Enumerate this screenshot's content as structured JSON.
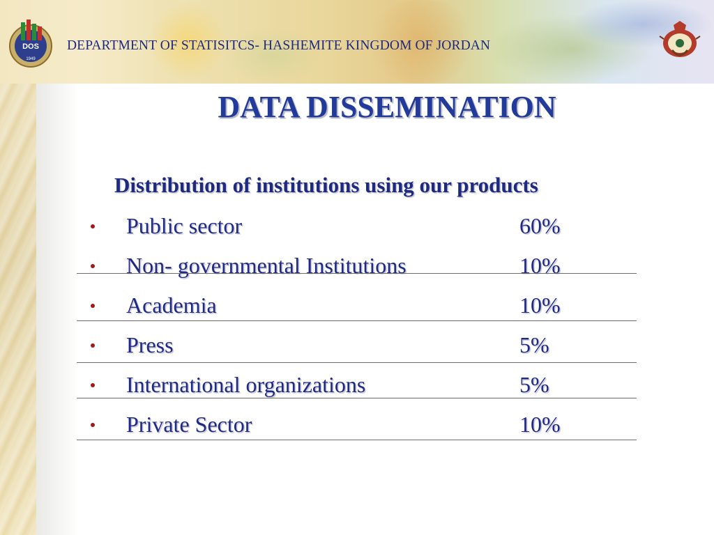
{
  "header": {
    "department": "DEPARTMENT OF STATISITCS- HASHEMITE KINGDOM OF JORDAN",
    "logo_text": "DOS",
    "logo_year": "1949"
  },
  "slide": {
    "title": "DATA DISSEMINATION",
    "subtitle": "Distribution of institutions using our products",
    "items": [
      {
        "label": "Public sector",
        "value": "60%"
      },
      {
        "label": "Non- governmental Institutions",
        "value": "10%"
      },
      {
        "label": "Academia",
        "value": "10%"
      },
      {
        "label": "Press",
        "value": "5%"
      },
      {
        "label": "International organizations",
        "value": "5%"
      },
      {
        "label": "Private Sector",
        "value": "10%"
      }
    ]
  },
  "colors": {
    "title": "#223a9a",
    "text": "#1f2a86",
    "bullet": "#a11a1a"
  }
}
